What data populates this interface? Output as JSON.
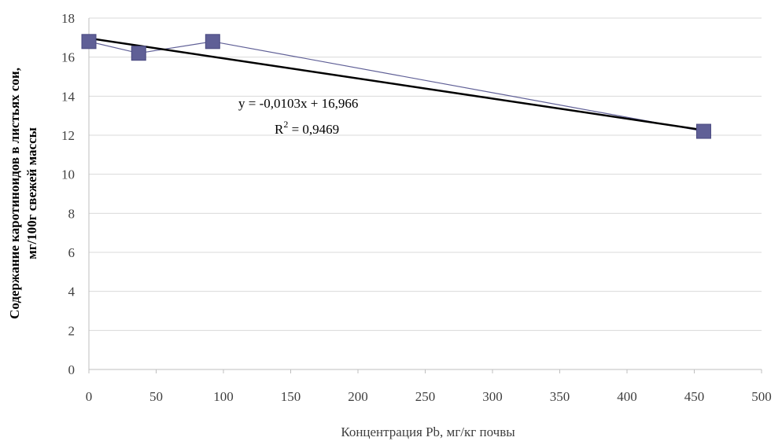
{
  "chart_data": {
    "type": "scatter",
    "title": "",
    "xlabel": "Концентрация Pb, мг/кг почвы",
    "ylabel_lines": [
      "Содержание каротиноидов в листьях сои,",
      "мг/100г свежей массы"
    ],
    "xlim": [
      0,
      500
    ],
    "ylim": [
      0,
      18
    ],
    "x_ticks": [
      0,
      50,
      100,
      150,
      200,
      250,
      300,
      350,
      400,
      450,
      500
    ],
    "y_ticks": [
      0,
      2,
      4,
      6,
      8,
      10,
      12,
      14,
      16,
      18
    ],
    "grid": true,
    "legend": "none",
    "series": [
      {
        "x": [
          0,
          37,
          92,
          457
        ],
        "y": [
          16.8,
          16.2,
          16.8,
          12.2
        ],
        "marker": "square",
        "color": "#5f5f96",
        "connected": true
      }
    ],
    "trendline": {
      "type": "linear",
      "slope": -0.0103,
      "intercept": 16.966,
      "x_range": [
        0,
        457
      ],
      "color": "#000000",
      "equation_text": "y = -0,0103x + 16,966",
      "r2_prefix": "R",
      "r2_sup": "2",
      "r2_suffix": " = 0,9469"
    }
  }
}
